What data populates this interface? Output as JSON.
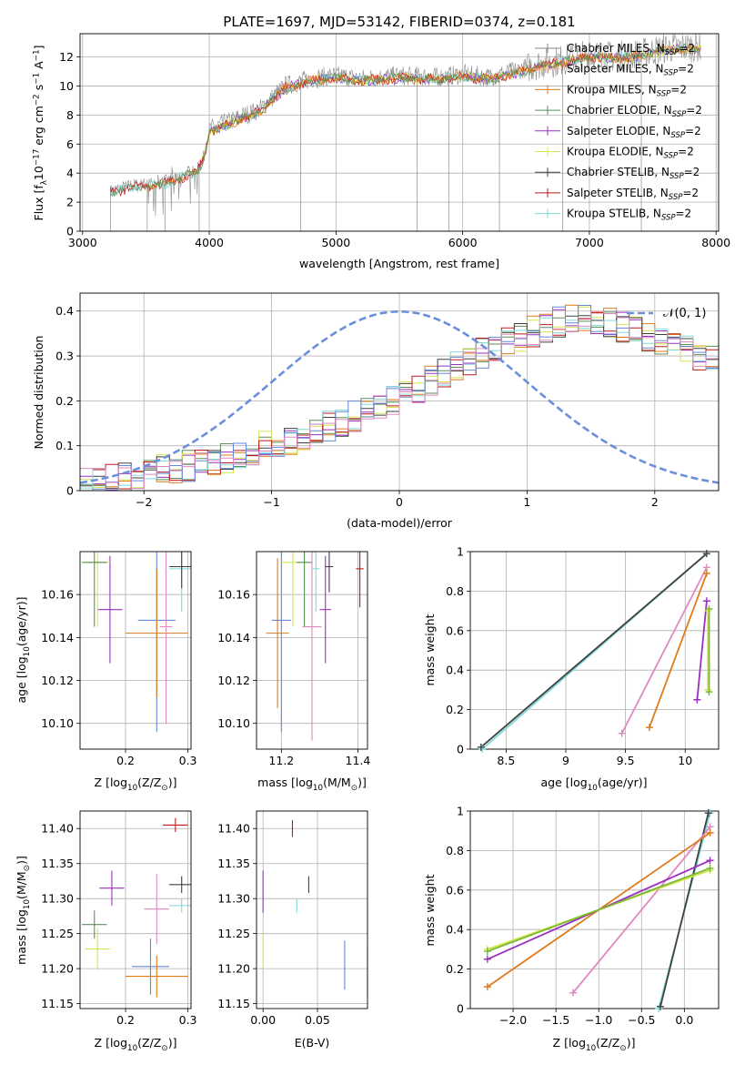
{
  "figure_title": "PLATE=1697, MJD=53142, FIBERID=0374, z=0.181",
  "colors": {
    "Chabrier MILES": "#8a8a8a",
    "Salpeter MILES": "#ffb0a0",
    "Kroupa MILES": "#e07a1a",
    "Chabrier ELODIE": "#5b8f5b",
    "Salpeter ELODIE": "#9b30c0",
    "Kroupa ELODIE": "#d4e650",
    "Chabrier STELIB": "#404040",
    "Salpeter STELIB": "#c01818",
    "Kroupa STELIB": "#7fd9d9",
    "blue": "#6688d8",
    "pink": "#e088c0",
    "green": "#7ab832",
    "normal": "#6a8fdc"
  },
  "chart_data": [
    {
      "id": "spectrum",
      "type": "line",
      "title": "PLATE=1697, MJD=53142, FIBERID=0374, z=0.181",
      "xlabel": "wavelength [Angstrom, rest frame]",
      "ylabel_parts": [
        "Flux [f",
        "λ",
        "10",
        "−17",
        " erg cm",
        "−2",
        " s",
        "−1",
        " A",
        "−1",
        "]"
      ],
      "xlim": [
        2980,
        8020
      ],
      "ylim": [
        0,
        13.6
      ],
      "xticks": [
        3000,
        4000,
        5000,
        6000,
        7000,
        8000
      ],
      "yticks": [
        0,
        2,
        4,
        6,
        8,
        10,
        12
      ],
      "legend_position": "top-right",
      "legend": [
        {
          "label": "Chabrier MILES, N",
          "sub": "SSP",
          "suffix": "=2",
          "color_key": "Chabrier MILES"
        },
        {
          "label": "Salpeter MILES, N",
          "sub": "SSP",
          "suffix": "=2",
          "color_key": "Salpeter MILES"
        },
        {
          "label": "Kroupa MILES, N",
          "sub": "SSP",
          "suffix": "=2",
          "color_key": "Kroupa MILES"
        },
        {
          "label": "Chabrier ELODIE, N",
          "sub": "SSP",
          "suffix": "=2",
          "color_key": "Chabrier ELODIE"
        },
        {
          "label": "Salpeter ELODIE, N",
          "sub": "SSP",
          "suffix": "=2",
          "color_key": "Salpeter ELODIE"
        },
        {
          "label": "Kroupa ELODIE, N",
          "sub": "SSP",
          "suffix": "=2",
          "color_key": "Kroupa ELODIE"
        },
        {
          "label": "Chabrier STELIB, N",
          "sub": "SSP",
          "suffix": "=2",
          "color_key": "Chabrier STELIB"
        },
        {
          "label": "Salpeter STELIB, N",
          "sub": "SSP",
          "suffix": "=2",
          "color_key": "Salpeter STELIB"
        },
        {
          "label": "Kroupa STELIB, N",
          "sub": "SSP",
          "suffix": "=2",
          "color_key": "Kroupa STELIB"
        }
      ],
      "continuum_knots": [
        [
          3220,
          2.8
        ],
        [
          3400,
          3.2
        ],
        [
          3600,
          3.3
        ],
        [
          3700,
          3.6
        ],
        [
          3900,
          4.2
        ],
        [
          3960,
          5.2
        ],
        [
          4000,
          7.0
        ],
        [
          4200,
          7.7
        ],
        [
          4400,
          8.4
        ],
        [
          4600,
          10.0
        ],
        [
          4800,
          10.5
        ],
        [
          5000,
          10.7
        ],
        [
          5200,
          10.5
        ],
        [
          5500,
          10.7
        ],
        [
          5800,
          10.6
        ],
        [
          6000,
          10.8
        ],
        [
          6200,
          10.6
        ],
        [
          6400,
          11.0
        ],
        [
          6600,
          11.5
        ],
        [
          6800,
          11.8
        ],
        [
          7000,
          12.2
        ],
        [
          7200,
          12.0
        ],
        [
          7400,
          12.2
        ],
        [
          7600,
          12.6
        ],
        [
          7800,
          12.7
        ]
      ],
      "masked_lines": [
        3220,
        3510,
        3650,
        3920,
        4720,
        5640,
        5890,
        6290,
        6790,
        7410
      ]
    },
    {
      "id": "residuals",
      "type": "step",
      "xlabel": "(data-model)/error",
      "ylabel": "Normed distribution",
      "xlim": [
        -2.5,
        2.5
      ],
      "ylim": [
        0,
        0.44
      ],
      "xticks": [
        -2,
        -1,
        0,
        1,
        2
      ],
      "xtick_labels": [
        "−2",
        "−1",
        "0",
        "1",
        "2"
      ],
      "yticks": [
        0,
        0.1,
        0.2,
        0.3,
        0.4
      ],
      "bin_width": 0.1,
      "bins_start": -2.5,
      "base_profile": [
        0.015,
        0.02,
        0.025,
        0.03,
        0.035,
        0.04,
        0.045,
        0.05,
        0.055,
        0.06,
        0.07,
        0.075,
        0.085,
        0.09,
        0.1,
        0.105,
        0.115,
        0.125,
        0.135,
        0.145,
        0.155,
        0.165,
        0.18,
        0.19,
        0.2,
        0.215,
        0.23,
        0.245,
        0.26,
        0.275,
        0.29,
        0.305,
        0.315,
        0.33,
        0.34,
        0.355,
        0.365,
        0.375,
        0.38,
        0.385,
        0.38,
        0.375,
        0.365,
        0.355,
        0.34,
        0.33,
        0.32,
        0.31,
        0.3,
        0.29,
        0.28,
        0.27,
        0.26,
        0.25,
        0.235,
        0.22,
        0.21,
        0.195,
        0.18,
        0.165,
        0.15,
        0.135,
        0.12,
        0.105,
        0.09,
        0.075,
        0.065,
        0.055,
        0.045,
        0.04,
        0.035,
        0.03,
        0.025,
        0.02,
        0.02,
        0.018,
        0.016,
        0.015,
        0.014,
        0.013
      ],
      "legend": "𝒩(0, 1)",
      "normal_curve": {
        "mean": 0,
        "sigma": 1
      }
    },
    {
      "id": "age-vs-Z",
      "type": "errorbar",
      "xlabel_parts": [
        "Z [log",
        "10",
        "(Z/Z",
        "⊙",
        ")]"
      ],
      "ylabel_parts": [
        "age  [log",
        "10",
        "(age/yr)]"
      ],
      "xlim": [
        0.127,
        0.305
      ],
      "ylim": [
        10.088,
        10.18
      ],
      "xticks": [
        0.2,
        0.3
      ],
      "yticks": [
        10.1,
        10.12,
        10.14,
        10.16
      ],
      "points": [
        {
          "color_key": "blue",
          "x": 0.25,
          "y": 10.148,
          "xerr": 0.03,
          "yerr": 0.052
        },
        {
          "color_key": "Kroupa MILES",
          "x": 0.25,
          "y": 10.142,
          "xerr": 0.05,
          "yerr": 0.03
        },
        {
          "color_key": "Salpeter ELODIE",
          "x": 0.175,
          "y": 10.153,
          "xerr": 0.02,
          "yerr": 0.025
        },
        {
          "color_key": "Kroupa ELODIE",
          "x": 0.155,
          "y": 10.175,
          "xerr": 0.02,
          "yerr": 0.03
        },
        {
          "color_key": "Chabrier ELODIE",
          "x": 0.15,
          "y": 10.175,
          "xerr": 0.02,
          "yerr": 0.03
        },
        {
          "color_key": "pink",
          "x": 0.265,
          "y": 10.145,
          "xerr": 0.01,
          "yerr": 0.045
        },
        {
          "color_key": "Kroupa STELIB",
          "x": 0.29,
          "y": 10.172,
          "xerr": 0.02,
          "yerr": 0.02
        },
        {
          "color_key": "Chabrier STELIB",
          "x": 0.29,
          "y": 10.173,
          "xerr": 0.02,
          "yerr": 0.01
        }
      ]
    },
    {
      "id": "age-vs-mass",
      "type": "errorbar",
      "xlabel_parts": [
        "mass [log",
        "10",
        "(M/M",
        "⊙",
        ")]"
      ],
      "xlim": [
        11.135,
        11.425
      ],
      "ylim": [
        10.088,
        10.18
      ],
      "xticks": [
        11.2,
        11.4
      ],
      "yticks": [
        10.1,
        10.12,
        10.14,
        10.16
      ],
      "points": [
        {
          "color_key": "blue",
          "x": 11.2,
          "y": 10.148,
          "xerr": 0.025,
          "yerr": 0.052
        },
        {
          "color_key": "Kroupa MILES",
          "x": 11.19,
          "y": 10.142,
          "xerr": 0.03,
          "yerr": 0.035
        },
        {
          "color_key": "Kroupa ELODIE",
          "x": 11.23,
          "y": 10.175,
          "xerr": 0.03,
          "yerr": 0.03
        },
        {
          "color_key": "Chabrier ELODIE",
          "x": 11.26,
          "y": 10.175,
          "xerr": 0.02,
          "yerr": 0.03
        },
        {
          "color_key": "pink",
          "x": 11.28,
          "y": 10.145,
          "xerr": 0.025,
          "yerr": 0.053
        },
        {
          "color_key": "Kroupa STELIB",
          "x": 11.29,
          "y": 10.172,
          "xerr": 0.01,
          "yerr": 0.02
        },
        {
          "color_key": "Salpeter ELODIE",
          "x": 11.315,
          "y": 10.153,
          "xerr": 0.015,
          "yerr": 0.025
        },
        {
          "color_key": "Chabrier STELIB",
          "x": 11.325,
          "y": 10.173,
          "xerr": 0.01,
          "yerr": 0.012
        },
        {
          "color_key": "Salpeter STELIB",
          "x": 11.405,
          "y": 10.172,
          "xerr": 0.01,
          "yerr": 0.018
        }
      ]
    },
    {
      "id": "weight-vs-age",
      "type": "line",
      "xlabel_parts": [
        "age  [log",
        "10",
        "(age/yr)]"
      ],
      "ylabel": "mass weight",
      "xlim": [
        8.2,
        10.28
      ],
      "ylim": [
        0,
        1.0
      ],
      "xticks": [
        8.5,
        9.0,
        9.5,
        10.0
      ],
      "yticks": [
        0,
        0.2,
        0.4,
        0.6,
        0.8,
        1.0
      ],
      "series": [
        {
          "color_key": "Kroupa STELIB",
          "x": [
            8.3,
            10.18
          ],
          "y": [
            0.0,
            0.99
          ]
        },
        {
          "color_key": "Chabrier STELIB",
          "x": [
            8.29,
            10.18
          ],
          "y": [
            0.01,
            0.99
          ]
        },
        {
          "color_key": "pink",
          "x": [
            9.47,
            10.18
          ],
          "y": [
            0.08,
            0.92
          ]
        },
        {
          "color_key": "Kroupa MILES",
          "x": [
            9.7,
            10.18
          ],
          "y": [
            0.11,
            0.89
          ]
        },
        {
          "color_key": "Salpeter ELODIE",
          "x": [
            10.1,
            10.18
          ],
          "y": [
            0.25,
            0.75
          ]
        },
        {
          "color_key": "Kroupa ELODIE",
          "x": [
            10.19,
            10.19
          ],
          "y": [
            0.3,
            0.7
          ]
        },
        {
          "color_key": "green",
          "x": [
            10.2,
            10.2
          ],
          "y": [
            0.29,
            0.71
          ]
        }
      ]
    },
    {
      "id": "mass-vs-Z",
      "type": "errorbar",
      "xlabel_parts": [
        "Z [log",
        "10",
        "(Z/Z",
        "⊙",
        ")]"
      ],
      "ylabel_parts": [
        "mass [log",
        "10",
        "(M/M",
        "⊙",
        ")]"
      ],
      "xlim": [
        0.127,
        0.305
      ],
      "ylim": [
        11.143,
        11.425
      ],
      "xticks": [
        0.2,
        0.3
      ],
      "yticks": [
        11.15,
        11.2,
        11.25,
        11.3,
        11.35,
        11.4
      ],
      "points": [
        {
          "color_key": "Salpeter STELIB",
          "x": 0.28,
          "y": 11.405,
          "xerr": 0.02,
          "yerr": 0.01
        },
        {
          "color_key": "Salpeter ELODIE",
          "x": 0.178,
          "y": 11.315,
          "xerr": 0.02,
          "yerr": 0.025
        },
        {
          "color_key": "Chabrier STELIB",
          "x": 0.29,
          "y": 11.32,
          "xerr": 0.02,
          "yerr": 0.012
        },
        {
          "color_key": "Kroupa STELIB",
          "x": 0.29,
          "y": 11.29,
          "xerr": 0.02,
          "yerr": 0.01
        },
        {
          "color_key": "pink",
          "x": 0.25,
          "y": 11.285,
          "xerr": 0.02,
          "yerr": 0.05
        },
        {
          "color_key": "Chabrier ELODIE",
          "x": 0.15,
          "y": 11.263,
          "xerr": 0.02,
          "yerr": 0.02
        },
        {
          "color_key": "Kroupa ELODIE",
          "x": 0.155,
          "y": 11.228,
          "xerr": 0.02,
          "yerr": 0.03
        },
        {
          "color_key": "blue",
          "x": 0.24,
          "y": 11.203,
          "xerr": 0.03,
          "yerr": 0.04
        },
        {
          "color_key": "Kroupa MILES",
          "x": 0.25,
          "y": 11.189,
          "xerr": 0.05,
          "yerr": 0.03
        }
      ]
    },
    {
      "id": "mass-vs-EBV",
      "type": "errorbar",
      "xlabel": "E(B-V)",
      "xlim": [
        -0.006,
        0.096
      ],
      "ylim": [
        11.143,
        11.425
      ],
      "xticks": [
        0.0,
        0.05
      ],
      "xtick_labels": [
        "0.00",
        "0.05"
      ],
      "yticks": [
        11.15,
        11.2,
        11.25,
        11.3,
        11.35,
        11.4
      ],
      "points": [
        {
          "color_key": "Salpeter STELIB",
          "x": 0.027,
          "y": 11.4,
          "xerr": 0,
          "yerr": 0.012
        },
        {
          "color_key": "Chabrier STELIB",
          "x": 0.042,
          "y": 11.32,
          "xerr": 0,
          "yerr": 0.012
        },
        {
          "color_key": "Kroupa STELIB",
          "x": 0.031,
          "y": 11.29,
          "xerr": 0,
          "yerr": 0.01
        },
        {
          "color_key": "Salpeter ELODIE",
          "x": 0.0,
          "y": 11.31,
          "xerr": 0,
          "yerr": 0.03
        },
        {
          "color_key": "pink",
          "x": 0.096,
          "y": 11.265,
          "xerr": 0,
          "yerr": 0.02
        },
        {
          "color_key": "Kroupa ELODIE",
          "x": 0.0,
          "y": 11.225,
          "xerr": 0,
          "yerr": 0.025
        },
        {
          "color_key": "blue",
          "x": 0.075,
          "y": 11.205,
          "xerr": 0,
          "yerr": 0.035
        },
        {
          "color_key": "Kroupa MILES",
          "x": 0.096,
          "y": 11.195,
          "xerr": 0,
          "yerr": 0.035
        }
      ]
    },
    {
      "id": "weight-vs-Z",
      "type": "line",
      "xlabel_parts": [
        "Z [log",
        "10",
        "(Z/Z",
        "⊙",
        ")]"
      ],
      "ylabel": "mass weight",
      "xlim": [
        -2.5,
        0.4
      ],
      "ylim": [
        0,
        1.0
      ],
      "xticks": [
        -2.0,
        -1.5,
        -1.0,
        -0.5,
        0.0
      ],
      "xtick_labels": [
        "−2.0",
        "−1.5",
        "−1.0",
        "−0.5",
        "0.0"
      ],
      "yticks": [
        0,
        0.2,
        0.4,
        0.6,
        0.8,
        1.0
      ],
      "series": [
        {
          "color_key": "Kroupa STELIB",
          "x": [
            -0.3,
            0.3
          ],
          "y": [
            0.0,
            0.99
          ]
        },
        {
          "color_key": "Chabrier STELIB",
          "x": [
            -0.28,
            0.28
          ],
          "y": [
            0.01,
            0.99
          ]
        },
        {
          "color_key": "pink",
          "x": [
            -1.3,
            0.3
          ],
          "y": [
            0.08,
            0.92
          ]
        },
        {
          "color_key": "Kroupa MILES",
          "x": [
            -2.3,
            0.3
          ],
          "y": [
            0.11,
            0.89
          ]
        },
        {
          "color_key": "Salpeter ELODIE",
          "x": [
            -2.3,
            0.3
          ],
          "y": [
            0.25,
            0.75
          ]
        },
        {
          "color_key": "Kroupa ELODIE",
          "x": [
            -2.3,
            0.3
          ],
          "y": [
            0.3,
            0.7
          ]
        },
        {
          "color_key": "green",
          "x": [
            -2.3,
            0.3
          ],
          "y": [
            0.29,
            0.71
          ]
        }
      ]
    }
  ]
}
